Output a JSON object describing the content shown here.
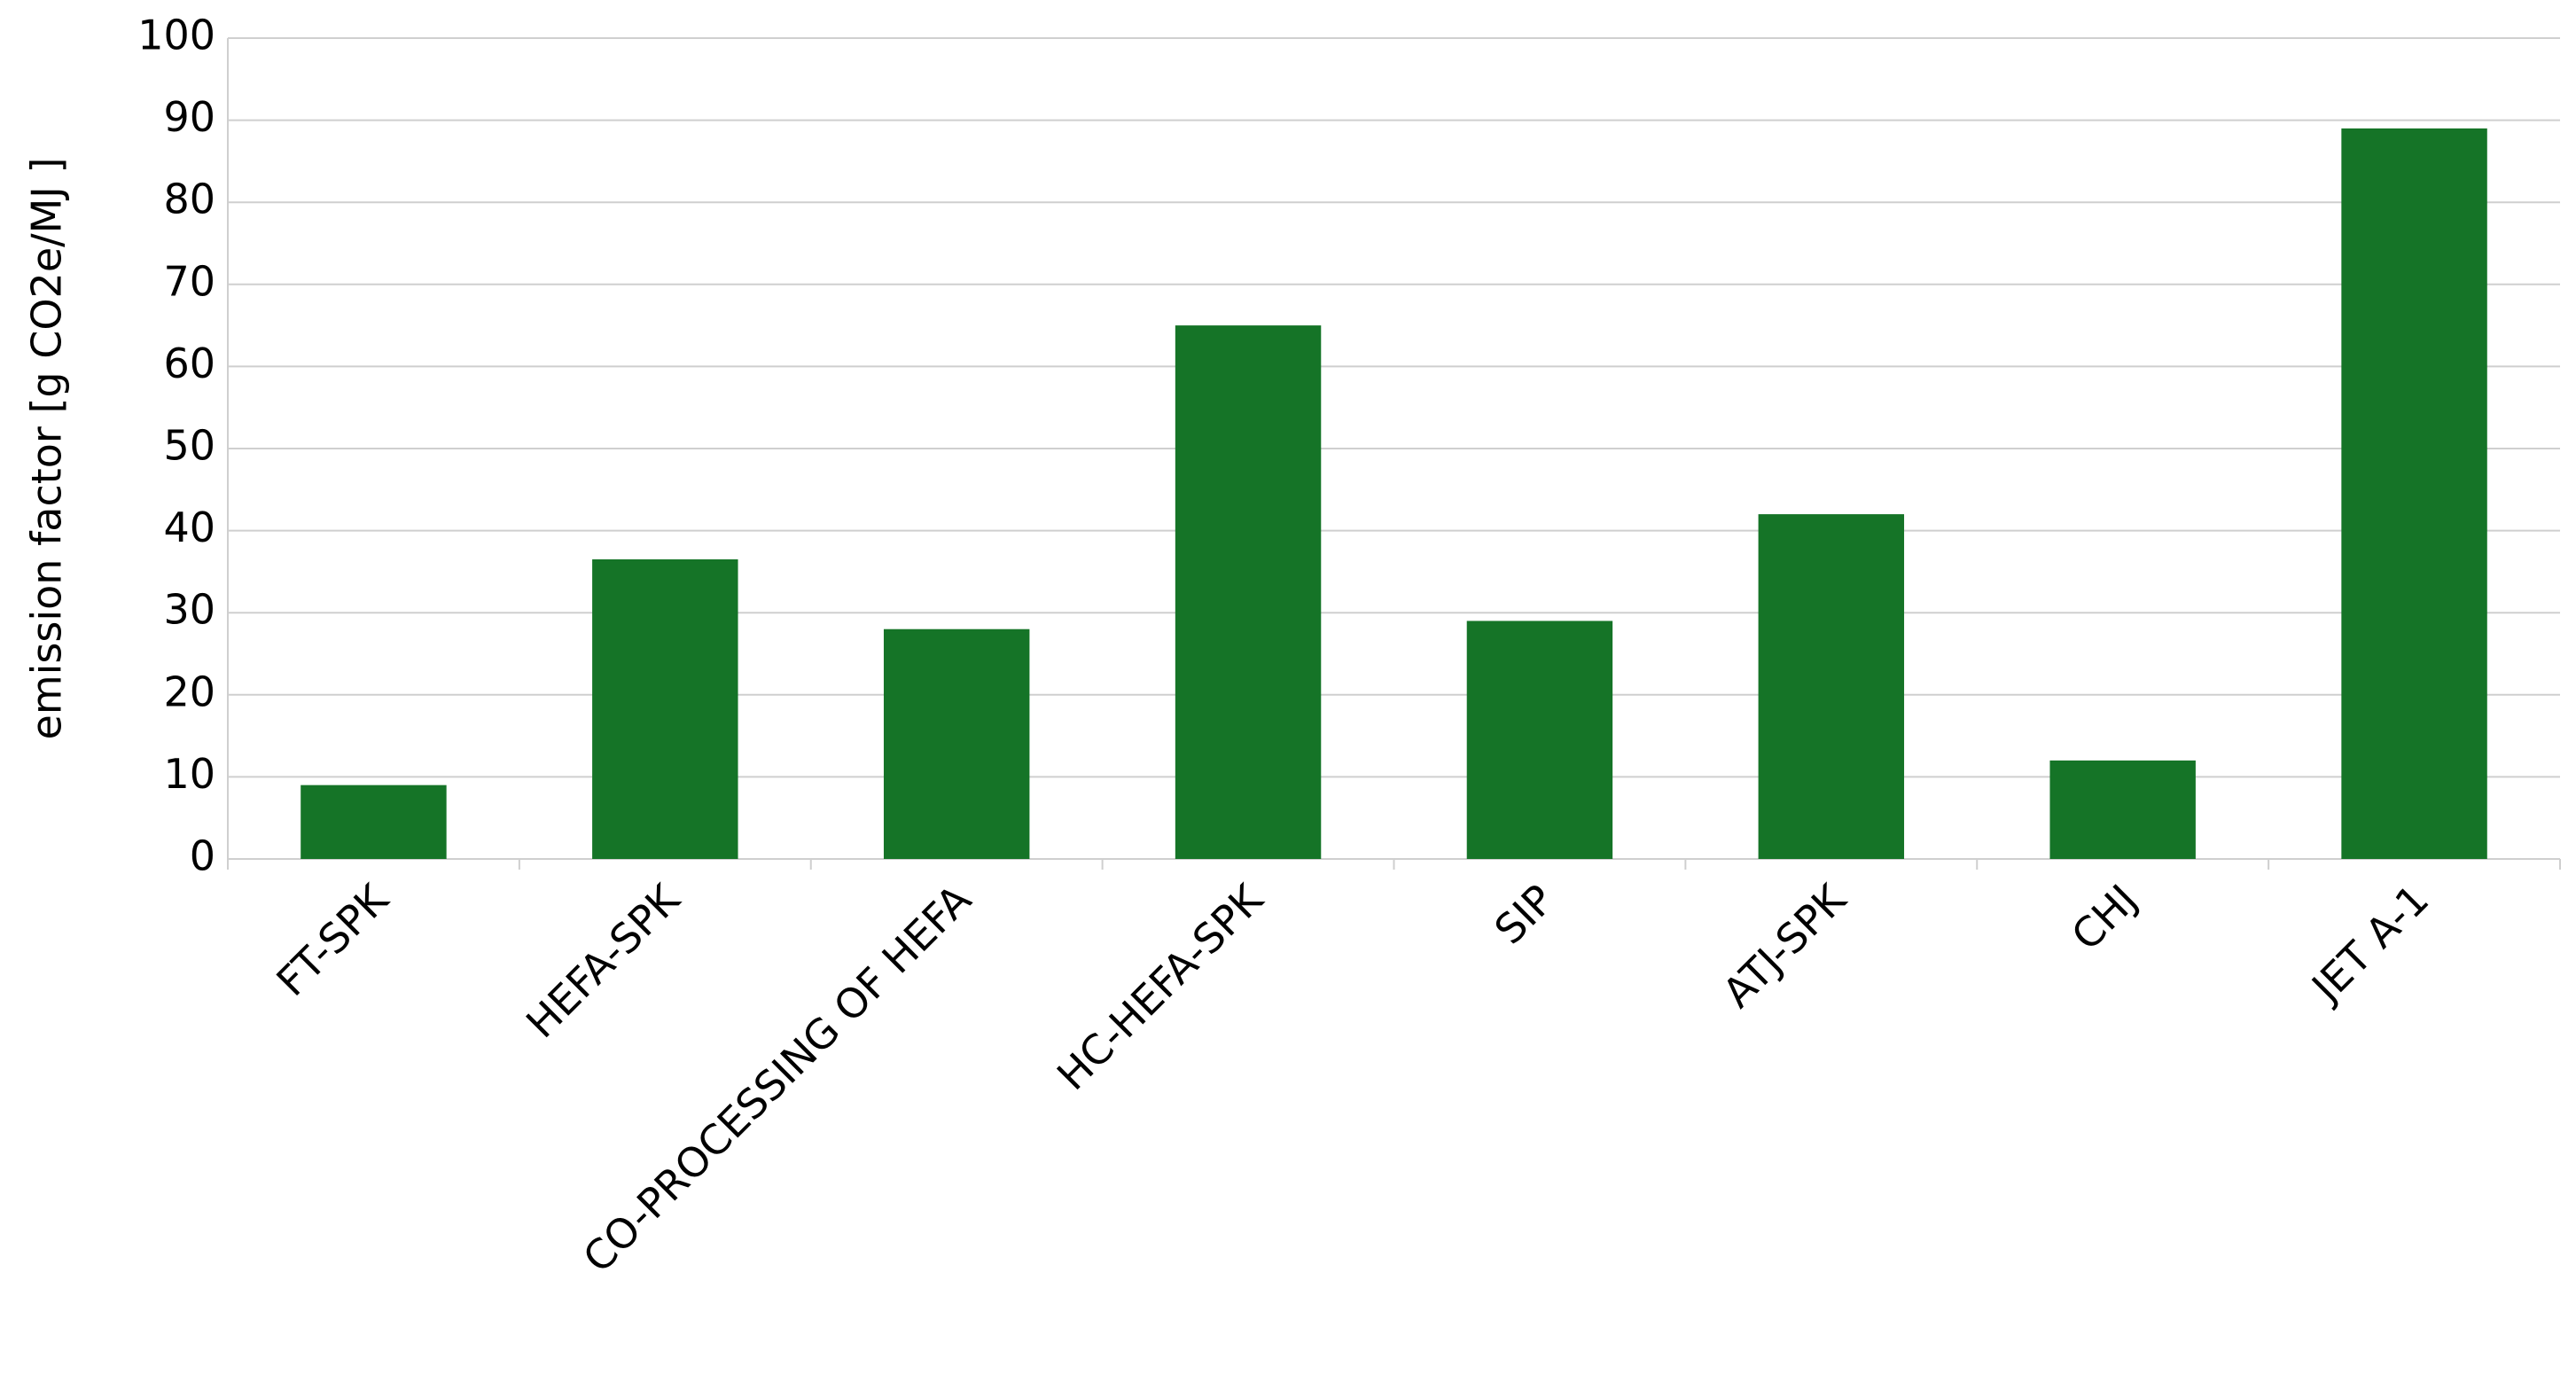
{
  "chart_data": {
    "type": "bar",
    "y_label": "emission factor [g CO2e/MJ ]",
    "categories": [
      "FT-SPK",
      "HEFA-SPK",
      "CO-PROCESSING OF HEFA",
      "HC-HEFA-SPK",
      "SIP",
      "ATJ-SPK",
      "CHJ",
      "JET A-1"
    ],
    "values": [
      9,
      36.5,
      28,
      65,
      29,
      42,
      12,
      89
    ],
    "color": "#157427",
    "ylim": [
      0,
      100
    ],
    "yticks": [
      0,
      10,
      20,
      30,
      40,
      50,
      60,
      70,
      80,
      90,
      100
    ],
    "grid": true
  }
}
